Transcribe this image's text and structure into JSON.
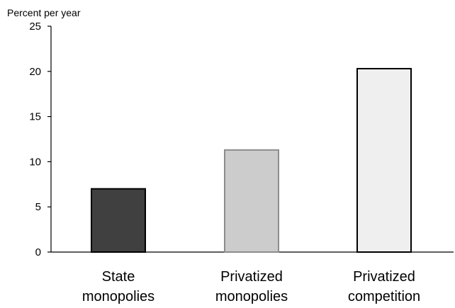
{
  "chart_data": {
    "type": "bar",
    "ylabel": "Percent per year",
    "ylim": [
      0,
      25
    ],
    "yticks": [
      0,
      5,
      10,
      15,
      20,
      25
    ],
    "grid": false,
    "categories": [
      [
        "State",
        "monopolies"
      ],
      [
        "Privatized",
        "monopolies"
      ],
      [
        "Privatized",
        "competition"
      ]
    ],
    "values": [
      7,
      11.3,
      20.3
    ],
    "colors": [
      "#404040",
      "#cccccc",
      "#efefef"
    ],
    "borders": [
      "#000000",
      "#8c8c8c",
      "#000000"
    ]
  }
}
